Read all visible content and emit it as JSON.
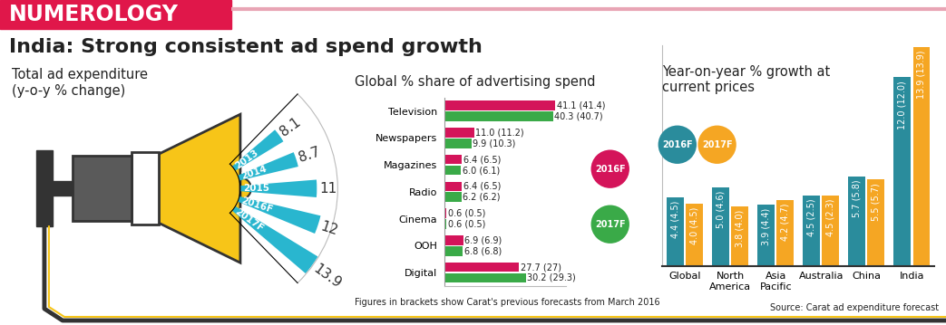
{
  "kicker": "NUMEROLOGY",
  "title": "India: Strong consistent ad spend growth",
  "source": "Source: Carat ad expenditure forecast",
  "chart_data": [
    {
      "type": "bar",
      "title": "Total ad expenditure\n(y-o-y % change)",
      "categories": [
        "2013",
        "2014",
        "2015",
        "2016F",
        "2017F"
      ],
      "values": [
        8.1,
        8.7,
        11,
        12,
        13.9
      ],
      "color": "#29b6cf",
      "ylim": [
        0,
        14
      ],
      "yticks": [],
      "tick_labels": false,
      "data_labels": true
    },
    {
      "type": "bar",
      "title": "Global % share of advertising spend",
      "orientation": "horizontal",
      "categories": [
        "Television",
        "Newspapers",
        "Magazines",
        "Radio",
        "Cinema",
        "OOH",
        "Digital"
      ],
      "series": [
        {
          "name": "2016F",
          "color": "#d4145a",
          "values": [
            41.1,
            11.0,
            6.4,
            6.4,
            0.6,
            6.9,
            27.7
          ],
          "value_labels": [
            "41.1 (41.4)",
            "11.0 (11.2)",
            "6.4 (6.5)",
            "6.4 (6.5)",
            "0.6 (0.5)",
            "6.9 (6.9)",
            "27.7 (27)"
          ]
        },
        {
          "name": "2017F",
          "color": "#3aaa48",
          "values": [
            40.3,
            9.9,
            6.0,
            6.2,
            0.6,
            6.8,
            30.2
          ],
          "value_labels": [
            "40.3 (40.7)",
            "9.9 (10.3)",
            "6.0 (6.1)",
            "6.2 (6.2)",
            "0.6 (0.5)",
            "6.8 (6.8)",
            "30.2 (29.3)"
          ]
        }
      ],
      "xlim": [
        0,
        45
      ],
      "xticks": [],
      "tick_labels": "y",
      "data_labels": true,
      "note": "Figures in brackets show Carat's previous forecasts from March 2016"
    },
    {
      "type": "bar",
      "title": "Year-on-year % growth at\ncurrent prices",
      "categories": [
        "Global",
        "North\nAmerica",
        "Asia\nPacific",
        "Australia",
        "China",
        "India"
      ],
      "series": [
        {
          "name": "2016F",
          "color": "#2a8c9c",
          "values": [
            4.4,
            5.0,
            3.9,
            4.5,
            5.7,
            12.0
          ],
          "value_labels": [
            "4.4 (4.5)",
            "5.0 (4.6)",
            "3.9 (4.4)",
            "4.5 (2.5)",
            "5.7 (5.8)",
            "12.0 (12.0)"
          ]
        },
        {
          "name": "2017F",
          "color": "#f5a623",
          "values": [
            4.0,
            3.8,
            4.2,
            4.5,
            5.5,
            13.9
          ],
          "value_labels": [
            "4.0 (4.5)",
            "3.8 (4.0)",
            "4.2 (4.7)",
            "4.5 (2.3)",
            "5.5 (5.7)",
            "13.9 (13.9)"
          ]
        }
      ],
      "ylim": [
        0,
        14
      ],
      "yticks": [],
      "tick_labels": "x",
      "data_labels": true
    }
  ]
}
